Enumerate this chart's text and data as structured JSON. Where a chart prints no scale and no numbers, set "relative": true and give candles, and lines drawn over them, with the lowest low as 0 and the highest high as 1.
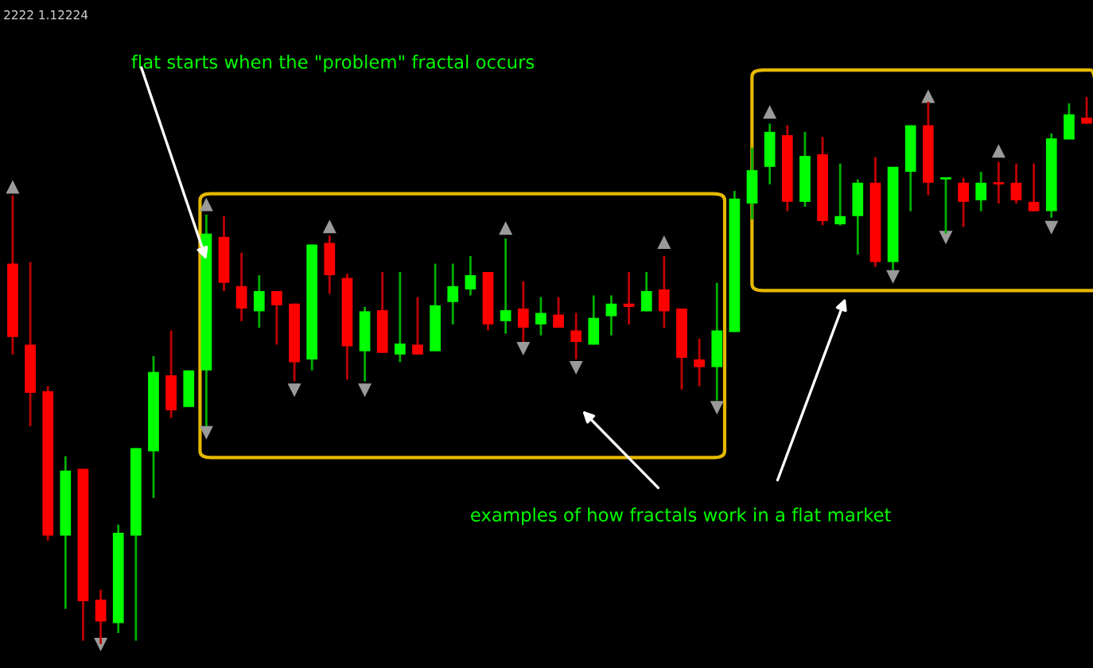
{
  "chart_data": {
    "type": "candlestick",
    "relative": true,
    "grid": false,
    "annotations": [
      "2222 1.12224",
      "flat starts when the \"problem\" fractal occurs",
      "examples of how fractals work in a flat market"
    ],
    "categories": [
      null,
      null,
      null,
      null,
      null,
      null,
      null,
      null,
      null,
      null,
      null,
      null,
      null,
      null,
      null,
      null,
      null,
      null,
      null,
      null,
      null,
      null,
      null,
      null,
      null,
      null,
      null,
      null,
      null,
      null,
      null,
      null,
      null,
      null,
      null,
      null,
      null,
      null,
      null,
      null,
      null,
      null,
      null,
      null,
      null,
      null,
      null,
      null,
      null,
      null,
      null,
      null,
      null,
      null,
      null,
      null,
      null,
      null,
      null,
      null,
      null,
      null
    ],
    "ohlc": [
      [
        0.695,
        0.82,
        0.529,
        0.561
      ],
      [
        0.547,
        0.698,
        0.398,
        0.459
      ],
      [
        0.462,
        0.471,
        0.189,
        0.198
      ],
      [
        0.198,
        0.343,
        0.064,
        0.317
      ],
      [
        0.32,
        0.32,
        0.006,
        0.078
      ],
      [
        0.081,
        0.099,
        0,
        0.041
      ],
      [
        0.038,
        0.218,
        0.02,
        0.203
      ],
      [
        0.198,
        0.358,
        0.006,
        0.358
      ],
      [
        0.352,
        0.526,
        0.267,
        0.497
      ],
      [
        0.491,
        0.573,
        0.413,
        0.427
      ],
      [
        0.433,
        0.5,
        0.433,
        0.5
      ],
      [
        0.5,
        0.785,
        0.398,
        0.75
      ],
      [
        0.744,
        0.782,
        0.645,
        0.66
      ],
      [
        0.654,
        0.715,
        0.59,
        0.613
      ],
      [
        0.608,
        0.674,
        0.578,
        0.645
      ],
      [
        0.645,
        0.645,
        0.547,
        0.619
      ],
      [
        0.622,
        0.622,
        0.48,
        0.515
      ],
      [
        0.52,
        0.73,
        0.5,
        0.73
      ],
      [
        0.733,
        0.747,
        0.64,
        0.674
      ],
      [
        0.669,
        0.677,
        0.483,
        0.544
      ],
      [
        0.535,
        0.616,
        0.48,
        0.608
      ],
      [
        0.61,
        0.68,
        0.532,
        0.532
      ],
      [
        0.529,
        0.68,
        0.515,
        0.549
      ],
      [
        0.547,
        0.634,
        0.529,
        0.529
      ],
      [
        0.535,
        0.695,
        0.535,
        0.619
      ],
      [
        0.625,
        0.695,
        0.584,
        0.654
      ],
      [
        0.648,
        0.709,
        0.637,
        0.674
      ],
      [
        0.68,
        0.68,
        0.573,
        0.584
      ],
      [
        0.59,
        0.741,
        0.567,
        0.61
      ],
      [
        0.613,
        0.663,
        0.552,
        0.578
      ],
      [
        0.584,
        0.634,
        0.564,
        0.605
      ],
      [
        0.602,
        0.634,
        0.578,
        0.578
      ],
      [
        0.573,
        0.605,
        0.52,
        0.552
      ],
      [
        0.547,
        0.637,
        0.547,
        0.596
      ],
      [
        0.599,
        0.637,
        0.564,
        0.622
      ],
      [
        0.622,
        0.68,
        0.584,
        0.616
      ],
      [
        0.608,
        0.68,
        0.608,
        0.645
      ],
      [
        0.648,
        0.709,
        0.578,
        0.608
      ],
      [
        0.613,
        0.613,
        0.465,
        0.523
      ],
      [
        0.52,
        0.558,
        0.471,
        0.506
      ],
      [
        0.506,
        0.66,
        0.445,
        0.573
      ],
      [
        0.57,
        0.828,
        0.57,
        0.814
      ],
      [
        0.805,
        0.907,
        0.776,
        0.866
      ],
      [
        0.872,
        0.951,
        0.84,
        0.936
      ],
      [
        0.93,
        0.948,
        0.791,
        0.808
      ],
      [
        0.808,
        0.936,
        0.799,
        0.892
      ],
      [
        0.895,
        0.927,
        0.765,
        0.773
      ],
      [
        0.767,
        0.878,
        0.765,
        0.782
      ],
      [
        0.782,
        0.849,
        0.712,
        0.843
      ],
      [
        0.843,
        0.89,
        0.689,
        0.698
      ],
      [
        0.698,
        0.872,
        0.683,
        0.872
      ],
      [
        0.863,
        0.948,
        0.791,
        0.948
      ],
      [
        0.948,
        0.991,
        0.82,
        0.843
      ],
      [
        0.849,
        0.852,
        0.75,
        0.852
      ],
      [
        0.843,
        0.852,
        0.762,
        0.808
      ],
      [
        0.811,
        0.863,
        0.791,
        0.843
      ],
      [
        0.843,
        0.881,
        0.805,
        0.84
      ],
      [
        0.843,
        0.878,
        0.805,
        0.811
      ],
      [
        0.808,
        0.878,
        0.791,
        0.791
      ],
      [
        0.791,
        0.933,
        0.779,
        0.924
      ],
      [
        0.922,
        0.988,
        0.922,
        0.968
      ],
      [
        0.962,
        1,
        0.951,
        0.951
      ]
    ],
    "colors": [
      "#ff0000",
      "#ff0000",
      "#ff0000",
      "#00ff00",
      "#ff0000",
      "#ff0000",
      "#00ff00",
      "#00ff00",
      "#00ff00",
      "#ff0000",
      "#00ff00",
      "#00ff00",
      "#ff0000",
      "#ff0000",
      "#00ff00",
      "#ff0000",
      "#ff0000",
      "#00ff00",
      "#ff0000",
      "#ff0000",
      "#00ff00",
      "#ff0000",
      "#00ff00",
      "#ff0000",
      "#00ff00",
      "#00ff00",
      "#00ff00",
      "#ff0000",
      "#00ff00",
      "#ff0000",
      "#00ff00",
      "#ff0000",
      "#ff0000",
      "#00ff00",
      "#00ff00",
      "#ff0000",
      "#00ff00",
      "#ff0000",
      "#ff0000",
      "#ff0000",
      "#00ff00",
      "#00ff00",
      "#00ff00",
      "#00ff00",
      "#ff0000",
      "#00ff00",
      "#ff0000",
      "#00ff00",
      "#00ff00",
      "#ff0000",
      "#00ff00",
      "#00ff00",
      "#ff0000",
      "#00ff00",
      "#ff0000",
      "#00ff00",
      "#ff0000",
      "#ff0000",
      "#ff0000",
      "#00ff00",
      "#00ff00",
      "#ff0000"
    ],
    "series": [
      {
        "type": "scatter",
        "marker": "triangle",
        "color": "#9a9a9a",
        "values": [
          0.834,
          null,
          null,
          null,
          null,
          null,
          null,
          null,
          null,
          null,
          null,
          0.802,
          null,
          null,
          null,
          null,
          null,
          null,
          0.762,
          null,
          null,
          null,
          null,
          null,
          null,
          null,
          null,
          null,
          0.759,
          null,
          null,
          null,
          null,
          null,
          null,
          null,
          null,
          0.733,
          null,
          null,
          null,
          null,
          null,
          0.971,
          null,
          null,
          null,
          null,
          null,
          null,
          null,
          null,
          1,
          null,
          null,
          null,
          0.9,
          null,
          null,
          null,
          null,
          null
        ]
      },
      {
        "type": "scatter",
        "marker": "triangle_down",
        "color": "#9a9a9a",
        "values": [
          null,
          null,
          null,
          null,
          null,
          0,
          null,
          null,
          null,
          null,
          null,
          0.387,
          null,
          null,
          null,
          null,
          0.465,
          null,
          null,
          null,
          0.465,
          null,
          null,
          null,
          null,
          null,
          null,
          null,
          null,
          0.541,
          null,
          null,
          0.506,
          null,
          null,
          null,
          null,
          null,
          null,
          null,
          0.433,
          null,
          null,
          null,
          null,
          null,
          null,
          null,
          null,
          null,
          0.672,
          null,
          null,
          0.744,
          null,
          null,
          null,
          null,
          null,
          0.762,
          null,
          null
        ]
      }
    ]
  }
}
